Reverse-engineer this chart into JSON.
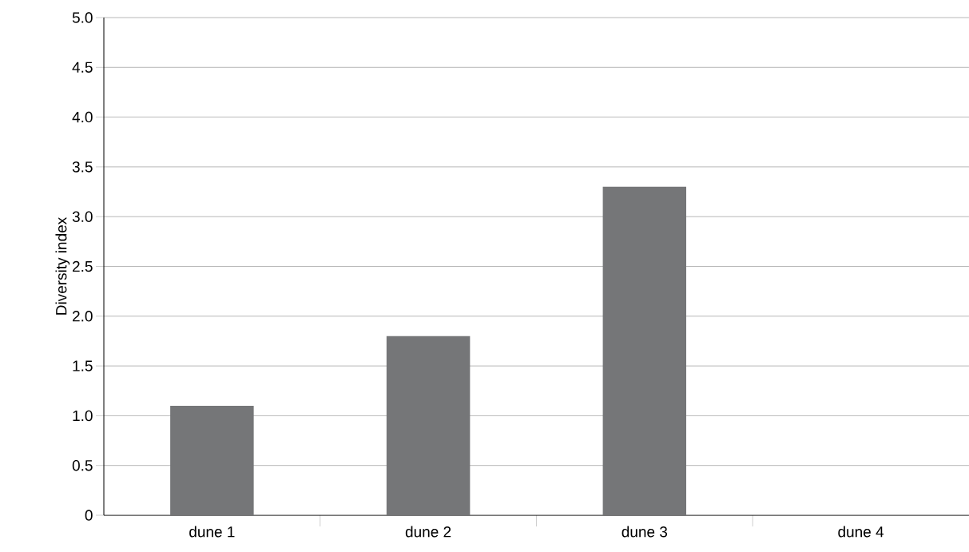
{
  "chart_data": {
    "type": "bar",
    "ylabel": "Diversity index",
    "categories": [
      "dune 1",
      "dune 2",
      "dune 3",
      "dune 4"
    ],
    "values": [
      1.1,
      1.8,
      3.3,
      null
    ],
    "color": "#757678",
    "ylim": [
      0,
      5
    ],
    "yticks": [
      {
        "value": 0,
        "label": "0"
      },
      0.5,
      {
        "value": 1,
        "label": "1.0"
      },
      1.5,
      {
        "value": 2,
        "label": "2.0"
      },
      2.5,
      {
        "value": 3,
        "label": "3.0"
      },
      3.5,
      {
        "value": 4,
        "label": "4.0"
      },
      4.5,
      {
        "value": 5,
        "label": "5.0"
      }
    ],
    "grid": "y"
  }
}
